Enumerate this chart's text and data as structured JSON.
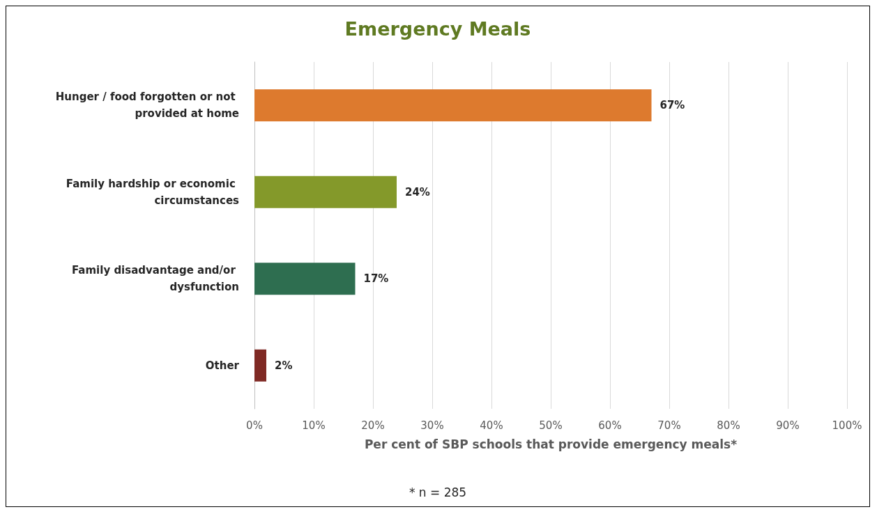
{
  "chart_data": {
    "type": "bar",
    "orientation": "horizontal",
    "title": "Emergency Meals",
    "categories": [
      "Hunger / food forgotten or not provided at home",
      "Family hardship or economic circumstances",
      "Family disadvantage and/or dysfunction",
      "Other"
    ],
    "values": [
      67,
      24,
      17,
      2
    ],
    "colors": [
      "#dd7a2e",
      "#84992a",
      "#2e6e50",
      "#7f2a24"
    ],
    "value_labels": [
      "67%",
      "24%",
      "17%",
      "2%"
    ],
    "xlim": [
      0,
      100
    ],
    "xticks": [
      {
        "value": 0,
        "label": "0%"
      },
      {
        "value": 10,
        "label": "10%"
      },
      {
        "value": 20,
        "label": "20%"
      },
      {
        "value": 30,
        "label": "30%"
      },
      {
        "value": 40,
        "label": "40%"
      },
      {
        "value": 50,
        "label": "50%"
      },
      {
        "value": 60,
        "label": "60%"
      },
      {
        "value": 70,
        "label": "70%"
      },
      {
        "value": 80,
        "label": "80%"
      },
      {
        "value": 90,
        "label": "90%"
      },
      {
        "value": 100,
        "label": "100%"
      }
    ],
    "xlabel": "Per cent of SBP schools that provide emergency meals*",
    "annotations": [
      "* n = 285"
    ],
    "grid": "x"
  }
}
